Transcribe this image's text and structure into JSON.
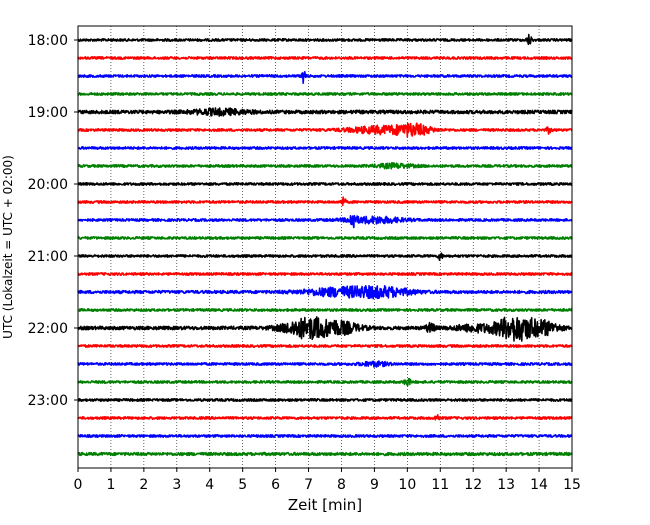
{
  "chart_data": {
    "type": "line",
    "title": "",
    "xlabel": "Zeit  [min]",
    "ylabel": "UTC (Lokalzeit = UTC + 02:00)",
    "xlim": [
      0,
      15
    ],
    "x_ticks": [
      "0",
      "1",
      "2",
      "3",
      "4",
      "5",
      "6",
      "7",
      "8",
      "9",
      "10",
      "11",
      "12",
      "13",
      "14",
      "15"
    ],
    "y_tick_labels": [
      "18:00",
      "19:00",
      "20:00",
      "21:00",
      "22:00",
      "23:00"
    ],
    "grid": "vertical dotted lines at each minute",
    "legend": "none",
    "trace_interval_minutes": 15,
    "color_cycle": [
      "#000000",
      "#ff0000",
      "#0000ff",
      "#008000"
    ],
    "traces": [
      {
        "time": "18:00",
        "color": "#000000",
        "base": 1.0,
        "events": [
          {
            "t": 13.7,
            "amp": 5,
            "w": 0.05
          }
        ]
      },
      {
        "time": "18:15",
        "color": "#ff0000",
        "base": 1.0,
        "events": []
      },
      {
        "time": "18:30",
        "color": "#0000ff",
        "base": 1.0,
        "events": [
          {
            "t": 6.85,
            "amp": 12,
            "w": 0.03
          }
        ]
      },
      {
        "time": "18:45",
        "color": "#008000",
        "base": 1.0,
        "events": []
      },
      {
        "time": "19:00",
        "color": "#000000",
        "base": 1.4,
        "events": [
          {
            "t": 4.3,
            "amp": 2.5,
            "w": 0.6
          }
        ]
      },
      {
        "time": "19:15",
        "color": "#ff0000",
        "base": 1.0,
        "events": [
          {
            "t": 9.2,
            "amp": 3.5,
            "w": 0.7
          },
          {
            "t": 10.2,
            "amp": 5,
            "w": 0.35
          },
          {
            "t": 14.3,
            "amp": 3,
            "w": 0.05
          }
        ]
      },
      {
        "time": "19:30",
        "color": "#0000ff",
        "base": 1.0,
        "events": []
      },
      {
        "time": "19:45",
        "color": "#008000",
        "base": 1.0,
        "events": [
          {
            "t": 9.6,
            "amp": 2,
            "w": 0.4
          }
        ]
      },
      {
        "time": "20:00",
        "color": "#000000",
        "base": 1.0,
        "events": []
      },
      {
        "time": "20:15",
        "color": "#ff0000",
        "base": 1.0,
        "events": [
          {
            "t": 8.05,
            "amp": 4,
            "w": 0.05
          }
        ]
      },
      {
        "time": "20:30",
        "color": "#0000ff",
        "base": 1.0,
        "events": [
          {
            "t": 8.35,
            "amp": 8,
            "w": 0.06
          },
          {
            "t": 9.0,
            "amp": 3,
            "w": 0.6
          }
        ]
      },
      {
        "time": "20:45",
        "color": "#008000",
        "base": 1.0,
        "events": []
      },
      {
        "time": "21:00",
        "color": "#000000",
        "base": 1.0,
        "events": [
          {
            "t": 11.0,
            "amp": 4,
            "w": 0.04
          }
        ]
      },
      {
        "time": "21:15",
        "color": "#ff0000",
        "base": 1.0,
        "events": []
      },
      {
        "time": "21:30",
        "color": "#0000ff",
        "base": 1.2,
        "events": [
          {
            "t": 8.0,
            "amp": 4,
            "w": 0.8
          },
          {
            "t": 9.3,
            "amp": 4,
            "w": 0.6
          }
        ]
      },
      {
        "time": "21:45",
        "color": "#008000",
        "base": 1.0,
        "events": []
      },
      {
        "time": "22:00",
        "color": "#000000",
        "base": 1.4,
        "events": [
          {
            "t": 7.0,
            "amp": 10,
            "w": 0.5
          },
          {
            "t": 8.0,
            "amp": 5,
            "w": 0.4
          },
          {
            "t": 10.7,
            "amp": 4,
            "w": 0.1
          },
          {
            "t": 12.0,
            "amp": 3,
            "w": 0.4
          },
          {
            "t": 13.3,
            "amp": 12,
            "w": 0.45
          },
          {
            "t": 14.2,
            "amp": 5,
            "w": 0.3
          }
        ]
      },
      {
        "time": "22:15",
        "color": "#ff0000",
        "base": 1.0,
        "events": []
      },
      {
        "time": "22:30",
        "color": "#0000ff",
        "base": 1.0,
        "events": [
          {
            "t": 9.0,
            "amp": 2,
            "w": 0.3
          }
        ]
      },
      {
        "time": "22:45",
        "color": "#008000",
        "base": 1.0,
        "events": [
          {
            "t": 10.0,
            "amp": 4,
            "w": 0.06
          }
        ]
      },
      {
        "time": "23:00",
        "color": "#000000",
        "base": 1.0,
        "events": []
      },
      {
        "time": "23:15",
        "color": "#ff0000",
        "base": 1.0,
        "events": [
          {
            "t": 10.9,
            "amp": 4,
            "w": 0.04
          }
        ]
      },
      {
        "time": "23:30",
        "color": "#0000ff",
        "base": 1.0,
        "events": []
      },
      {
        "time": "23:45",
        "color": "#008000",
        "base": 1.2,
        "events": []
      }
    ]
  }
}
